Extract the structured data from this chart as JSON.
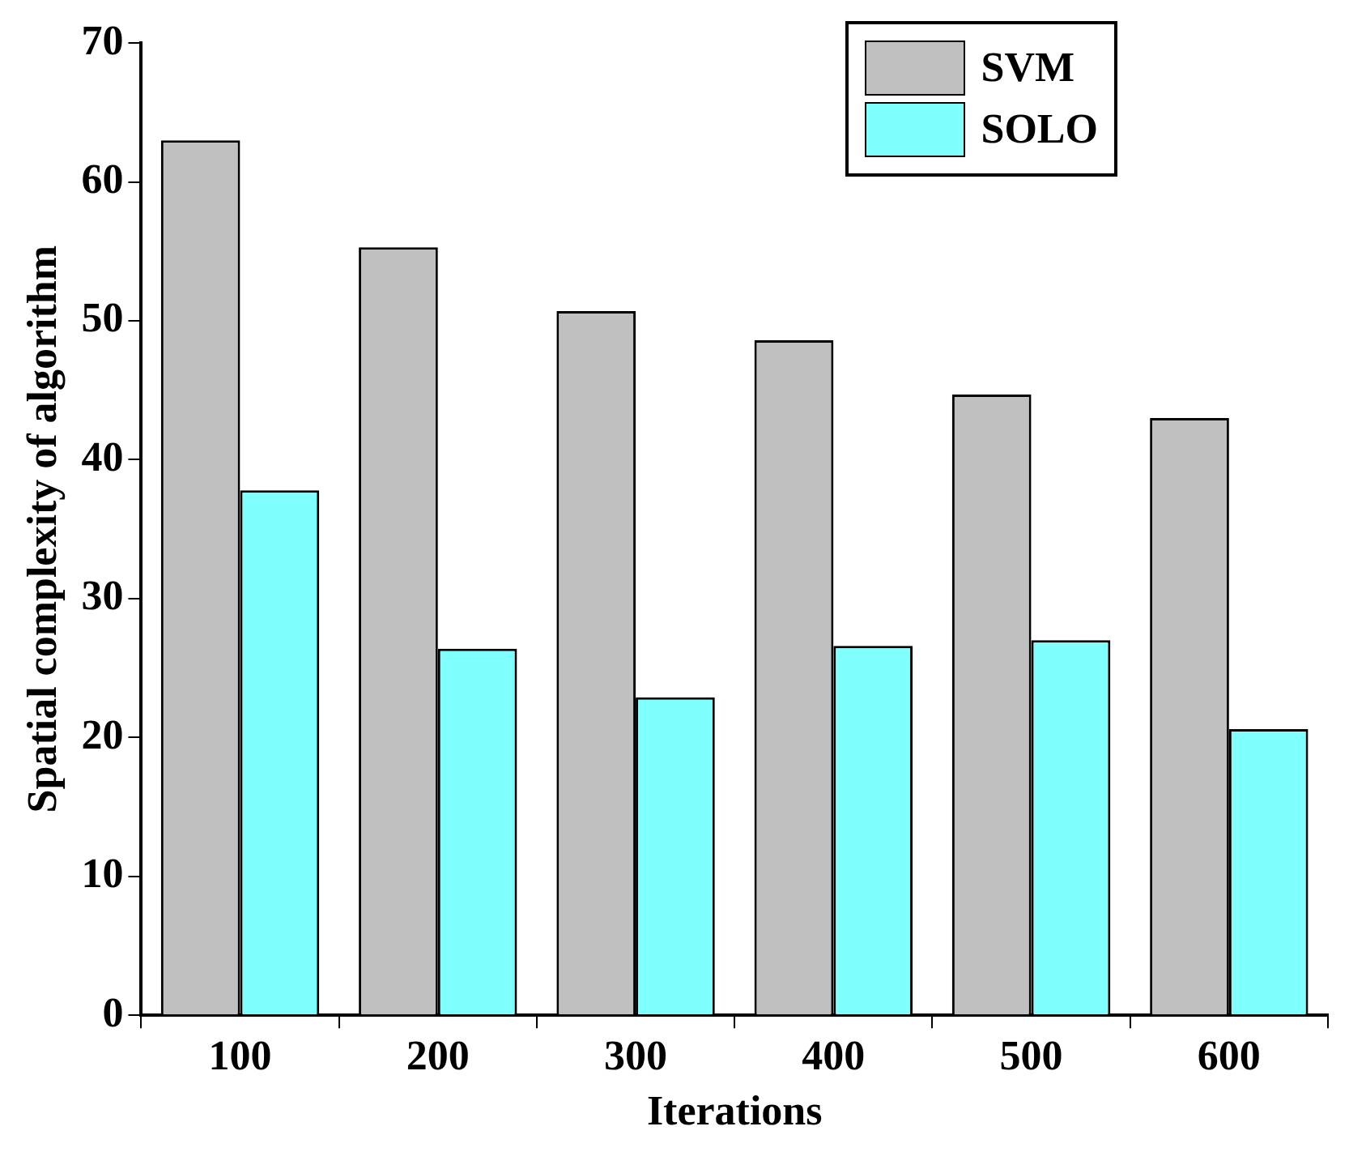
{
  "chart_data": {
    "type": "bar",
    "xlabel": "Iterations",
    "ylabel": "Spatial complexity of algorithm",
    "categories": [
      "100",
      "200",
      "300",
      "400",
      "500",
      "600"
    ],
    "series": [
      {
        "name": "SVM",
        "color": "#c0c0c0",
        "values": [
          63.0,
          55.3,
          50.7,
          48.6,
          44.7,
          43.0
        ]
      },
      {
        "name": "SOLO",
        "color": "#80ffff",
        "values": [
          37.8,
          26.4,
          22.9,
          26.6,
          27.0,
          20.6
        ]
      }
    ],
    "ylim": [
      0,
      70
    ],
    "yticks": [
      0,
      10,
      20,
      30,
      40,
      50,
      60,
      70
    ],
    "grid": false,
    "legend": "top right"
  }
}
